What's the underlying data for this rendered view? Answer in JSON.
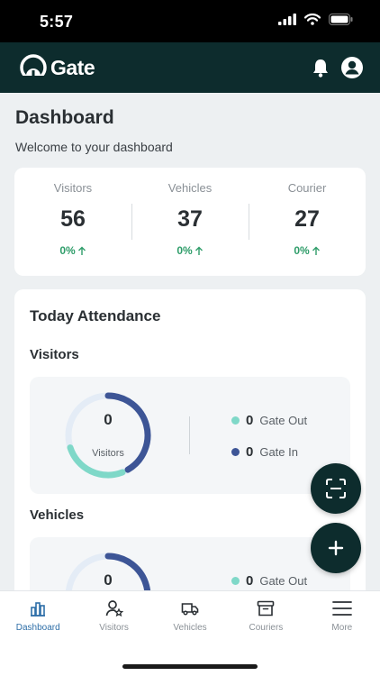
{
  "status": {
    "time": "5:57"
  },
  "header": {
    "brand": "Gate"
  },
  "dashboard": {
    "title": "Dashboard",
    "subtitle": "Welcome to your dashboard"
  },
  "stats": [
    {
      "label": "Visitors",
      "value": "56",
      "change": "0%"
    },
    {
      "label": "Vehicles",
      "value": "37",
      "change": "0%"
    },
    {
      "label": "Courier",
      "value": "27",
      "change": "0%"
    }
  ],
  "attendance": {
    "title": "Today Attendance",
    "visitors": {
      "title": "Visitors",
      "count": "0",
      "label": "Visitors",
      "gate_out_count": "0",
      "gate_out_label": "Gate Out",
      "gate_in_count": "0",
      "gate_in_label": "Gate In"
    },
    "vehicles": {
      "title": "Vehicles",
      "count": "0",
      "gate_out_count": "0",
      "gate_out_label": "Gate Out"
    }
  },
  "colors": {
    "primary": "#0d2c2d",
    "gate_out": "#7fd8c8",
    "gate_in": "#3d5596",
    "positive": "#2f9d6a",
    "active_tab": "#2f6fa8"
  },
  "tabs": [
    {
      "label": "Dashboard",
      "icon": "chart-icon",
      "active": true
    },
    {
      "label": "Visitors",
      "icon": "user-star-icon"
    },
    {
      "label": "Vehicles",
      "icon": "truck-icon"
    },
    {
      "label": "Couriers",
      "icon": "archive-box-icon"
    },
    {
      "label": "More",
      "icon": "menu-icon"
    }
  ]
}
